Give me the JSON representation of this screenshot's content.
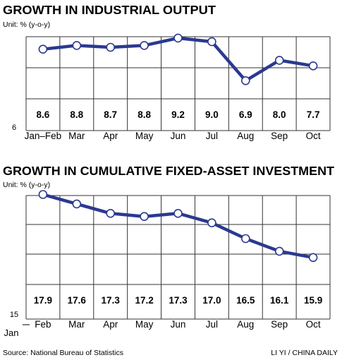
{
  "charts": [
    {
      "title": "GROWTH IN INDUSTRIAL OUTPUT",
      "unit": "Unit: % (y-o-y)",
      "axis_min_label": "6",
      "axis_start_label": "",
      "line_color": "#2B3990",
      "grid_color": "#333333"
    },
    {
      "title": "GROWTH IN CUMULATIVE FIXED-ASSET INVESTMENT",
      "unit": "Unit: % (y-o-y)",
      "axis_min_label": "15",
      "axis_start_label": "Jan",
      "line_color": "#2B3990",
      "grid_color": "#333333"
    }
  ],
  "footer": {
    "source": "Source: National Bureau of Statistics",
    "credit": "LI YI / CHINA DAILY"
  },
  "chart_data": [
    {
      "type": "line",
      "title": "GROWTH IN INDUSTRIAL OUTPUT",
      "ylabel": "Unit: % (y-o-y)",
      "categories": [
        "Jan–Feb",
        "Mar",
        "Apr",
        "May",
        "Jun",
        "Jul",
        "Aug",
        "Sep",
        "Oct"
      ],
      "values": [
        8.6,
        8.8,
        8.7,
        8.8,
        9.2,
        9.0,
        6.9,
        8.0,
        7.7
      ],
      "data_labels": [
        "8.6",
        "8.8",
        "8.7",
        "8.8",
        "9.2",
        "9.0",
        "6.9",
        "8.0",
        "7.7"
      ],
      "ylim": [
        6,
        9.5
      ],
      "grid": true
    },
    {
      "type": "line",
      "title": "GROWTH IN CUMULATIVE FIXED-ASSET INVESTMENT",
      "ylabel": "Unit: % (y-o-y)",
      "categories": [
        "Feb",
        "Mar",
        "Apr",
        "May",
        "Jun",
        "Jul",
        "Aug",
        "Sep",
        "Oct"
      ],
      "values": [
        17.9,
        17.6,
        17.3,
        17.2,
        17.3,
        17.0,
        16.5,
        16.1,
        15.9
      ],
      "data_labels": [
        "17.9",
        "17.6",
        "17.3",
        "17.2",
        "17.3",
        "17.0",
        "16.5",
        "16.1",
        "15.9"
      ],
      "ylim": [
        15,
        18
      ],
      "grid": true
    }
  ]
}
